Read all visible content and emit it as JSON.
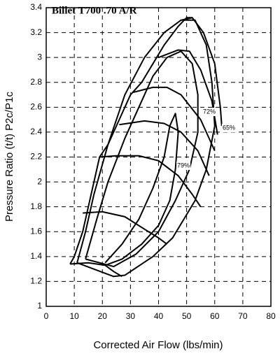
{
  "chart_data": {
    "type": "line",
    "title": "Billet T700 .70 A/R",
    "x_label": "Corrected Air Flow (lbs/min)",
    "y_label": "Pressure Ratio (t/t) P2c/P1c",
    "xlim": [
      0,
      80
    ],
    "xticks": [
      0,
      10,
      20,
      30,
      40,
      50,
      60,
      70,
      80
    ],
    "ylim": [
      1,
      3.4
    ],
    "yticks": [
      1,
      1.2,
      1.4,
      1.6,
      1.8,
      2,
      2.2,
      2.4,
      2.6,
      2.8,
      3,
      3.2,
      3.4
    ],
    "grid": true,
    "annotations": [
      "72%",
      "65%",
      "79%"
    ],
    "series": [
      {
        "color": "#000000",
        "x": [
          8.5,
          10,
          13,
          15,
          17,
          19,
          22,
          26,
          30,
          34,
          38,
          42,
          47,
          50,
          52
        ],
        "values": [
          1.34,
          1.4,
          1.6,
          1.8,
          2.0,
          2.2,
          2.3,
          2.5,
          2.7,
          2.8,
          2.95,
          3.1,
          3.25,
          3.32,
          3.32
        ]
      },
      {
        "color": "#000000",
        "x": [
          8.5,
          15,
          21,
          24,
          27
        ],
        "values": [
          1.34,
          1.35,
          1.33,
          1.28,
          1.24
        ]
      },
      {
        "color": "#000000",
        "x": [
          13,
          20,
          28,
          35,
          40,
          43
        ],
        "values": [
          1.75,
          1.76,
          1.72,
          1.62,
          1.55,
          1.5
        ]
      },
      {
        "color": "#000000",
        "x": [
          19,
          25,
          33,
          40,
          47,
          52,
          55
        ],
        "values": [
          2.2,
          2.21,
          2.21,
          2.17,
          2.05,
          1.9,
          1.8
        ]
      },
      {
        "color": "#000000",
        "x": [
          26,
          35,
          42,
          48,
          54,
          58
        ],
        "values": [
          2.46,
          2.49,
          2.47,
          2.4,
          2.25,
          2.05
        ]
      },
      {
        "color": "#000000",
        "x": [
          31,
          38,
          43,
          48,
          55,
          60
        ],
        "values": [
          2.72,
          2.76,
          2.76,
          2.7,
          2.5,
          2.25
        ]
      },
      {
        "color": "#000000",
        "x": [
          40,
          47,
          51,
          55,
          59,
          61
        ],
        "values": [
          3.0,
          3.06,
          3.05,
          2.9,
          2.65,
          2.38
        ]
      },
      {
        "color": "#000000",
        "x": [
          48,
          52,
          56,
          60,
          62,
          62.5
        ],
        "values": [
          3.3,
          3.32,
          3.2,
          2.95,
          2.6,
          2.45
        ]
      },
      {
        "color": "#000000",
        "x": [
          21,
          27,
          33,
          38,
          42,
          44,
          46,
          47,
          46,
          44,
          40,
          34,
          27,
          21
        ],
        "values": [
          1.35,
          1.5,
          1.7,
          1.95,
          2.2,
          2.45,
          2.55,
          2.4,
          2.1,
          1.85,
          1.65,
          1.5,
          1.38,
          1.33
        ]
      },
      {
        "color": "#000000",
        "x": [
          14,
          18,
          22,
          28,
          33,
          38,
          43,
          48,
          52,
          54,
          54,
          51,
          46,
          40,
          32,
          24,
          14
        ],
        "values": [
          1.38,
          1.7,
          2.0,
          2.35,
          2.6,
          2.85,
          3.0,
          3.05,
          2.95,
          2.7,
          2.4,
          2.1,
          1.85,
          1.6,
          1.42,
          1.32,
          1.38
        ]
      },
      {
        "color": "#000000",
        "x": [
          11,
          14,
          17,
          22,
          28,
          35,
          42,
          48,
          53,
          57,
          59,
          60,
          57,
          53,
          45,
          38,
          28,
          24,
          11
        ],
        "values": [
          1.35,
          1.6,
          1.9,
          2.3,
          2.7,
          3.0,
          3.2,
          3.3,
          3.3,
          3.1,
          2.8,
          2.45,
          2.1,
          1.85,
          1.55,
          1.4,
          1.25,
          1.24,
          1.35
        ]
      }
    ]
  }
}
